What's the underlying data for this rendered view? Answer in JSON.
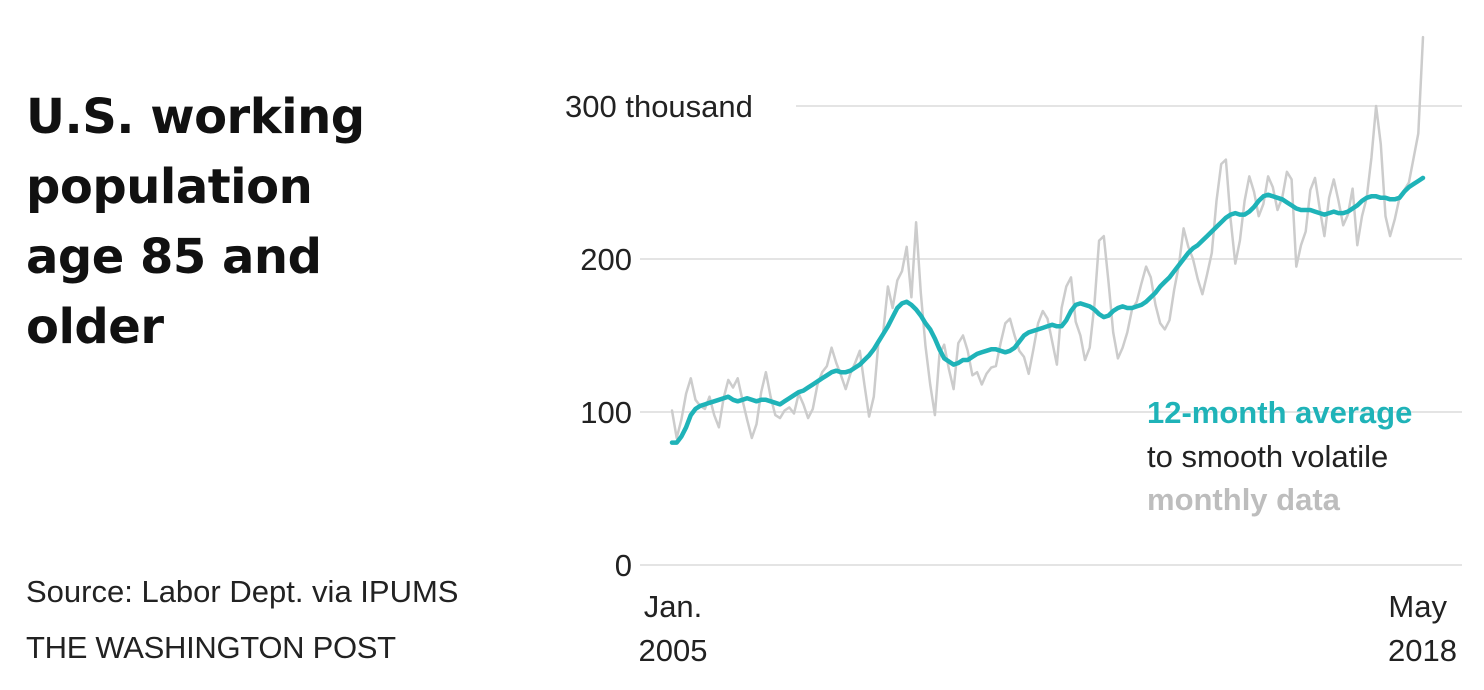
{
  "title_lines": [
    "U.S. working",
    "population",
    "age 85 and",
    "older"
  ],
  "source": "Source: Labor Dept. via IPUMS",
  "credit": "THE WASHINGTON POST",
  "colors": {
    "average": "#1fb3b8",
    "monthly": "#cccccc",
    "grid": "#e4e4e4",
    "text": "#111111"
  },
  "chart_data": {
    "type": "line",
    "x_range": [
      "2005-01",
      "2018-05"
    ],
    "ylim": [
      0,
      300
    ],
    "y_ticks": [
      {
        "value": 0,
        "label": "0"
      },
      {
        "value": 100,
        "label": "100"
      },
      {
        "value": 200,
        "label": "200"
      },
      {
        "value": 300,
        "label": "300 thousand"
      }
    ],
    "x_ticks": [
      {
        "date": "2005-01",
        "line1": "Jan.",
        "line2": "2005",
        "anchor": "start"
      },
      {
        "date": "2018-05",
        "line1": "May",
        "line2": "2018",
        "anchor": "end"
      }
    ],
    "annotation": {
      "line1": "12-month average",
      "line2": "to smooth volatile",
      "line3": "monthly data"
    },
    "series": [
      {
        "name": "monthly data",
        "key": "monthly",
        "start": "2005-01",
        "values": [
          101,
          83,
          95,
          112,
          122,
          108,
          104,
          102,
          110,
          98,
          90,
          109,
          121,
          116,
          122,
          108,
          95,
          83,
          92,
          113,
          126,
          110,
          98,
          96,
          101,
          103,
          99,
          112,
          105,
          96,
          102,
          118,
          126,
          130,
          142,
          132,
          124,
          115,
          125,
          132,
          140,
          118,
          97,
          110,
          146,
          152,
          182,
          168,
          186,
          192,
          208,
          175,
          224,
          178,
          143,
          118,
          98,
          138,
          144,
          128,
          115,
          145,
          150,
          140,
          124,
          126,
          118,
          125,
          129,
          130,
          145,
          158,
          161,
          150,
          140,
          136,
          125,
          141,
          158,
          166,
          161,
          146,
          131,
          168,
          182,
          188,
          159,
          150,
          134,
          142,
          170,
          212,
          215,
          185,
          152,
          135,
          142,
          152,
          167,
          172,
          184,
          195,
          188,
          170,
          158,
          154,
          160,
          180,
          196,
          220,
          208,
          200,
          187,
          177,
          190,
          204,
          238,
          262,
          265,
          226,
          197,
          212,
          238,
          254,
          244,
          228,
          236,
          254,
          247,
          232,
          240,
          257,
          252,
          195,
          209,
          218,
          245,
          253,
          233,
          215,
          240,
          252,
          238,
          222,
          229,
          246,
          209,
          228,
          240,
          266,
          300,
          275,
          228,
          215,
          226,
          240,
          245,
          250,
          266,
          282,
          345
        ]
      },
      {
        "name": "12-month average",
        "key": "average",
        "start": "2005-01",
        "values": [
          80,
          80,
          84,
          90,
          98,
          102,
          104,
          105,
          106,
          107,
          108,
          109,
          110,
          108,
          107,
          108,
          109,
          108,
          107,
          108,
          108,
          107,
          106,
          105,
          107,
          109,
          111,
          113,
          114,
          116,
          118,
          120,
          122,
          124,
          126,
          127,
          126,
          126,
          127,
          129,
          131,
          134,
          137,
          141,
          146,
          151,
          156,
          162,
          168,
          171,
          172,
          170,
          167,
          163,
          158,
          154,
          148,
          141,
          135,
          133,
          131,
          132,
          134,
          134,
          136,
          138,
          139,
          140,
          141,
          141,
          140,
          139,
          140,
          142,
          146,
          150,
          152,
          153,
          154,
          155,
          156,
          157,
          156,
          156,
          160,
          166,
          170,
          171,
          170,
          169,
          167,
          164,
          162,
          163,
          166,
          168,
          169,
          168,
          168,
          169,
          170,
          172,
          175,
          178,
          182,
          185,
          188,
          192,
          196,
          200,
          204,
          207,
          209,
          212,
          215,
          218,
          221,
          224,
          227,
          229,
          230,
          229,
          229,
          231,
          234,
          238,
          241,
          242,
          241,
          240,
          239,
          237,
          235,
          233,
          232,
          232,
          232,
          231,
          230,
          229,
          230,
          231,
          230,
          230,
          231,
          233,
          235,
          238,
          240,
          241,
          241,
          240,
          240,
          239,
          239,
          240,
          244,
          247,
          249,
          251,
          253
        ]
      }
    ]
  }
}
